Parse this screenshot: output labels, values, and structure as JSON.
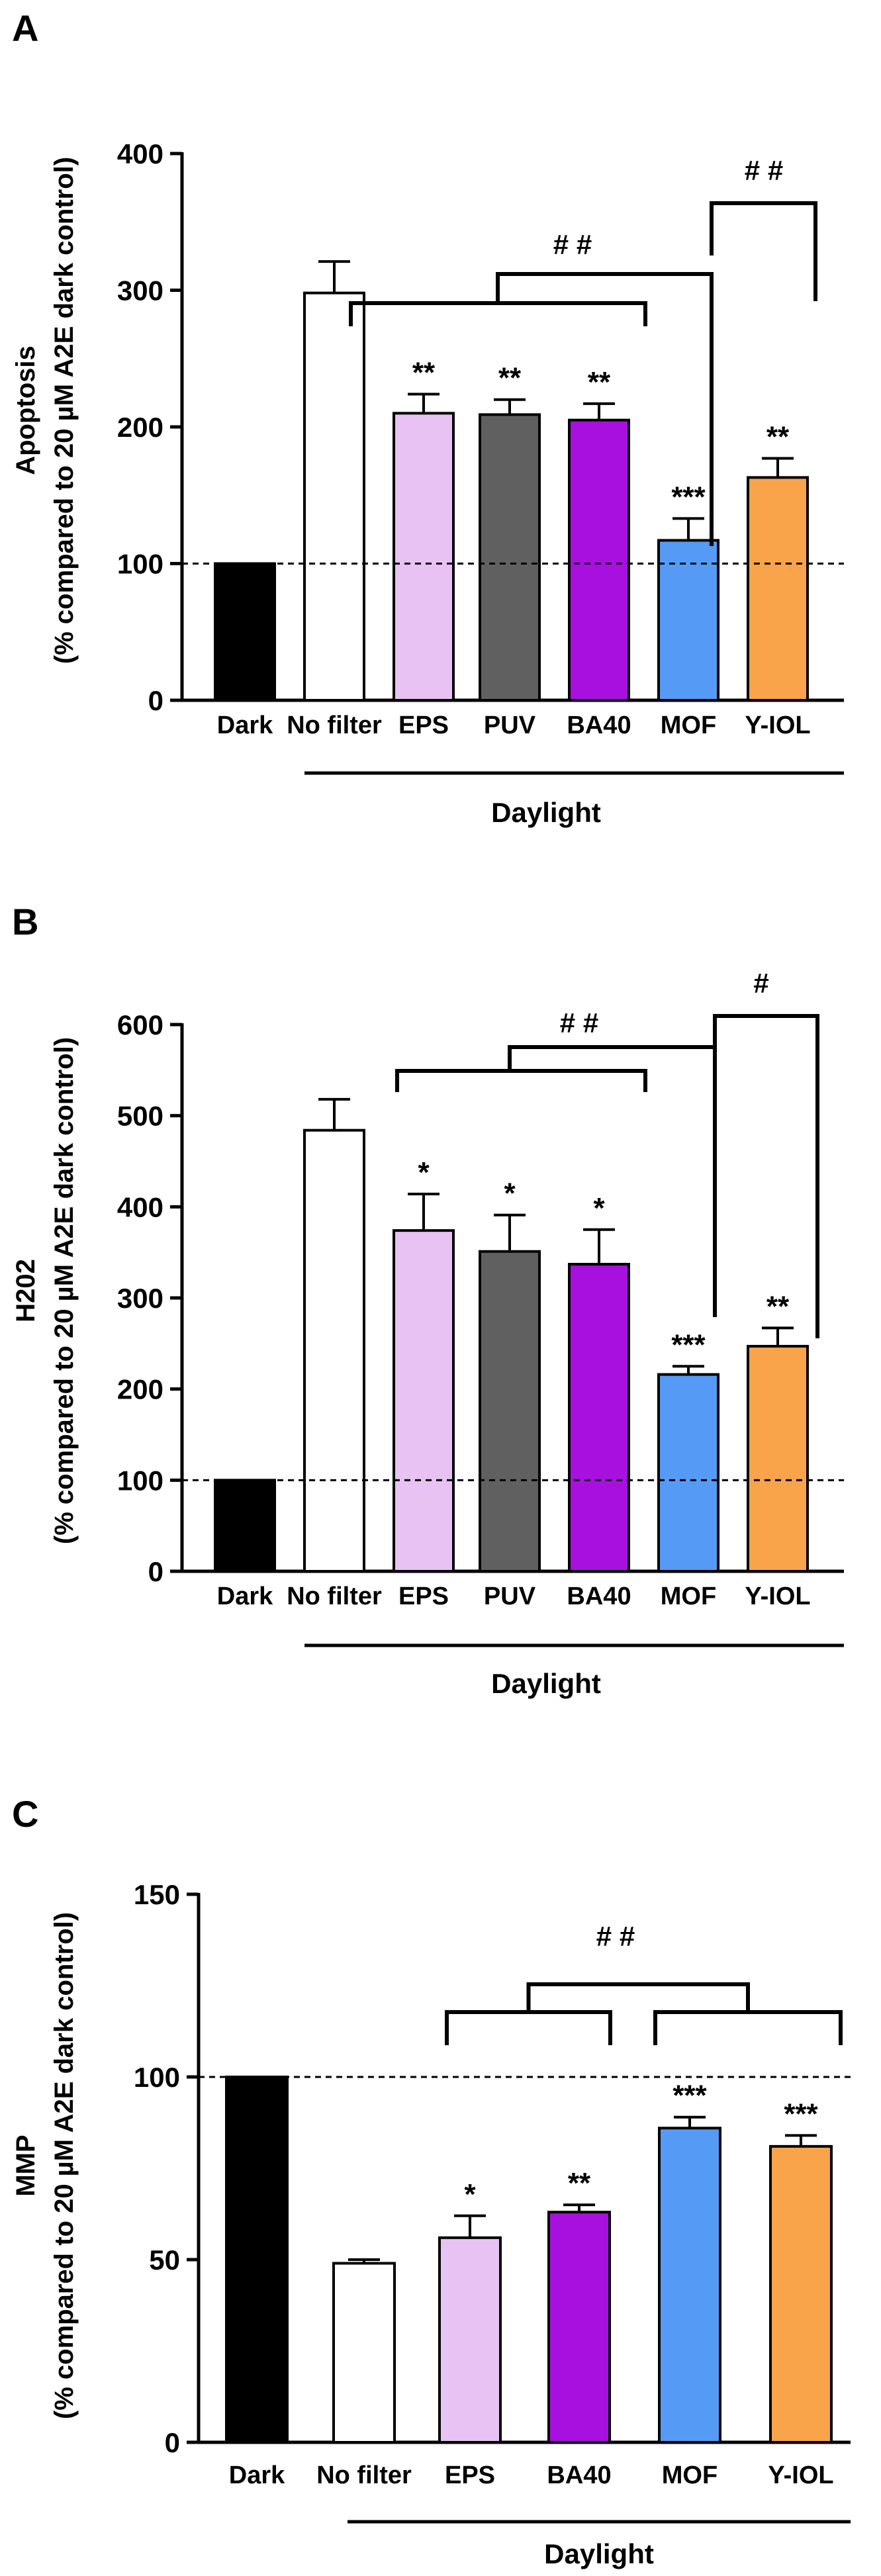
{
  "chart_data": [
    {
      "panel": "A",
      "type": "bar",
      "ylabel_line1": "Apoptosis",
      "ylabel_line2": "(% compared to 20 µM A2E dark control)",
      "ylim": [
        0,
        400
      ],
      "yticks": [
        0,
        100,
        200,
        300,
        400
      ],
      "reference_line": 100,
      "categories": [
        "Dark",
        "No filter",
        "EPS",
        "PUV",
        "BA40",
        "MOF",
        "Y-IOL"
      ],
      "values": [
        100,
        298,
        210,
        209,
        205,
        117,
        163
      ],
      "errors": [
        0,
        23,
        14,
        11,
        12,
        16,
        14
      ],
      "colors": [
        "#000000",
        "#ffffff",
        "#e7c2f2",
        "#606060",
        "#a810e0",
        "#559bf5",
        "#f9a34a"
      ],
      "significance": [
        "",
        "",
        "**",
        "**",
        "**",
        "***",
        "**"
      ],
      "group_label": "Daylight",
      "group_start": "No filter",
      "comparisons": [
        {
          "label": "# #",
          "from": "EPS..BA40",
          "to": "MOF"
        },
        {
          "label": "# #",
          "from": "MOF",
          "to": "Y-IOL"
        }
      ]
    },
    {
      "panel": "B",
      "type": "bar",
      "ylabel_line1": "H202",
      "ylabel_line2": "(% compared to 20 µM A2E dark control)",
      "ylim": [
        0,
        600
      ],
      "yticks": [
        0,
        100,
        200,
        300,
        400,
        500,
        600
      ],
      "reference_line": 100,
      "categories": [
        "Dark",
        "No filter",
        "EPS",
        "PUV",
        "BA40",
        "MOF",
        "Y-IOL"
      ],
      "values": [
        100,
        484,
        374,
        351,
        337,
        216,
        247
      ],
      "errors": [
        0,
        34,
        40,
        40,
        38,
        9,
        20
      ],
      "colors": [
        "#000000",
        "#ffffff",
        "#e7c2f2",
        "#606060",
        "#a810e0",
        "#559bf5",
        "#f9a34a"
      ],
      "significance": [
        "",
        "",
        "*",
        "*",
        "*",
        "***",
        "**"
      ],
      "group_label": "Daylight",
      "group_start": "No filter",
      "comparisons": [
        {
          "label": "# #",
          "from": "EPS..BA40",
          "to": "MOF"
        },
        {
          "label": "#",
          "from": "MOF",
          "to": "Y-IOL"
        }
      ]
    },
    {
      "panel": "C",
      "type": "bar",
      "ylabel_line1": "MMP",
      "ylabel_line2": "(% compared to 20 µM A2E dark control)",
      "ylim": [
        0,
        150
      ],
      "yticks": [
        0,
        50,
        100,
        150
      ],
      "reference_line": 100,
      "categories": [
        "Dark",
        "No filter",
        "EPS",
        "BA40",
        "MOF",
        "Y-IOL"
      ],
      "values": [
        100,
        49,
        56,
        63,
        86,
        81
      ],
      "errors": [
        0,
        1,
        6,
        2,
        3,
        3
      ],
      "colors": [
        "#000000",
        "#ffffff",
        "#e7c2f2",
        "#a810e0",
        "#559bf5",
        "#f9a34a"
      ],
      "significance": [
        "",
        "",
        "*",
        "**",
        "***",
        "***"
      ],
      "group_label": "Daylight",
      "group_start": "No filter",
      "comparisons": [
        {
          "label": "# #",
          "from": "EPS..BA40",
          "to": "MOF..Y-IOL"
        }
      ]
    }
  ]
}
